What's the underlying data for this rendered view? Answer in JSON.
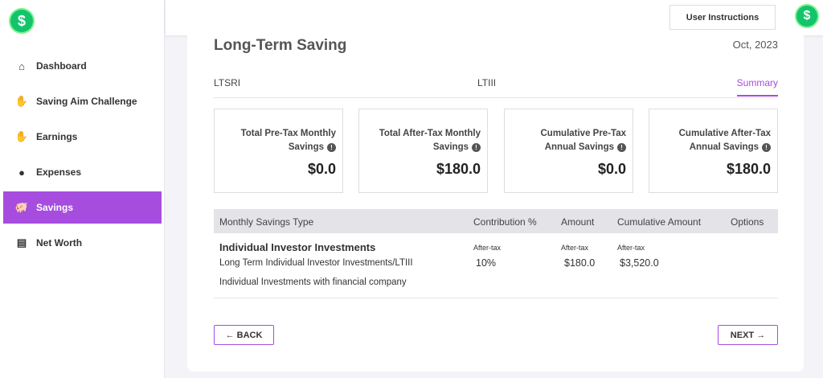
{
  "app": {
    "logo_symbol": "$",
    "accent": "#a64ddf",
    "logo_color": "#12c46a"
  },
  "sidebar": {
    "items": [
      {
        "label": "Dashboard",
        "icon": "home-icon",
        "glyph": "⌂"
      },
      {
        "label": "Saving Aim Challenge",
        "icon": "hand-dollar-icon",
        "glyph": "✋"
      },
      {
        "label": "Earnings",
        "icon": "hand-dollar-icon",
        "glyph": "✋"
      },
      {
        "label": "Expenses",
        "icon": "coins-icon",
        "glyph": "●"
      },
      {
        "label": "Savings",
        "icon": "piggy-bank-icon",
        "glyph": "🐖",
        "active": true
      },
      {
        "label": "Net Worth",
        "icon": "money-card-icon",
        "glyph": "▤"
      }
    ]
  },
  "header": {
    "user_instructions": "User Instructions",
    "avatar_symbol": "$"
  },
  "page": {
    "title": "Long-Term Saving",
    "date": "Oct, 2023"
  },
  "tabs": [
    "LTSRI",
    "LTIII",
    "Summary"
  ],
  "stats": [
    {
      "label1": "Total Pre-Tax Monthly",
      "label2": "Savings",
      "value": "$0.0"
    },
    {
      "label1": "Total After-Tax Monthly",
      "label2": "Savings",
      "value": "$180.0"
    },
    {
      "label1": "Cumulative Pre-Tax",
      "label2": "Annual Savings",
      "value": "$0.0"
    },
    {
      "label1": "Cumulative After-Tax",
      "label2": "Annual Savings",
      "value": "$180.0"
    }
  ],
  "table": {
    "headers": [
      "Monthly Savings Type",
      "Contribution %",
      "Amount",
      "Cumulative Amount",
      "Options"
    ],
    "row": {
      "title": "Individual Investor Investments",
      "subtitle": "Long Term Individual Investor Investments/LTIII",
      "description": "Individual Investments with financial company",
      "contribution_tag": "After-tax",
      "contribution": "10%",
      "amount_tag": "After-tax",
      "amount": "$180.0",
      "cumulative_tag": "After-tax",
      "cumulative": "$3,520.0"
    }
  },
  "buttons": {
    "back": "← BACK",
    "next": "NEXT →"
  }
}
